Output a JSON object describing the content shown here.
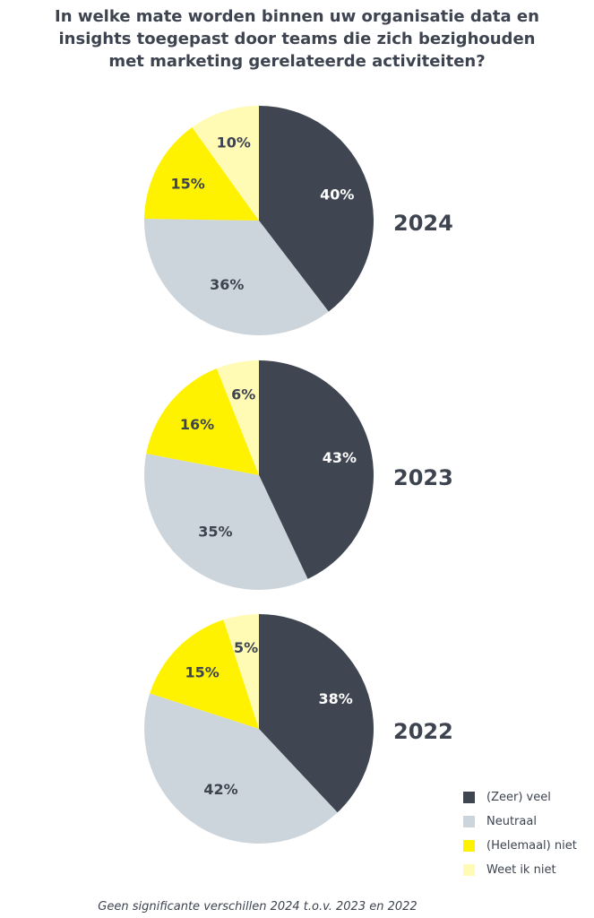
{
  "title_lines": [
    "In welke mate worden binnen uw organisatie data en",
    "insights toegepast door teams die zich bezighouden",
    "met marketing gerelateerde activiteiten?"
  ],
  "footnote": "Geen significante verschillen 2024 t.o.v. 2023 en 2022",
  "chart_data": {
    "type": "pie",
    "categories": [
      "(Zeer) veel",
      "Neutraal",
      "(Helemaal) niet",
      "Weet ik niet"
    ],
    "colors": [
      "#3f4651",
      "#cdd5dc",
      "#fff200",
      "#fffbb5"
    ],
    "label_colors": [
      "#ffffff",
      "#3d4450",
      "#3d4450",
      "#3d4450"
    ],
    "series": [
      {
        "name": "2024",
        "values": [
          40,
          36,
          15,
          10
        ],
        "labels": [
          "40%",
          "36%",
          "15%",
          "10%"
        ]
      },
      {
        "name": "2023",
        "values": [
          43,
          35,
          16,
          6
        ],
        "labels": [
          "43%",
          "35%",
          "16%",
          "6%"
        ]
      },
      {
        "name": "2022",
        "values": [
          38,
          42,
          15,
          5
        ],
        "labels": [
          "38%",
          "42%",
          "15%",
          "5%"
        ]
      }
    ],
    "legend": [
      "(Zeer) veel",
      "Neutraal",
      "(Helemaal) niet",
      "Weet ik niet"
    ],
    "legend_position": "bottom-right"
  }
}
